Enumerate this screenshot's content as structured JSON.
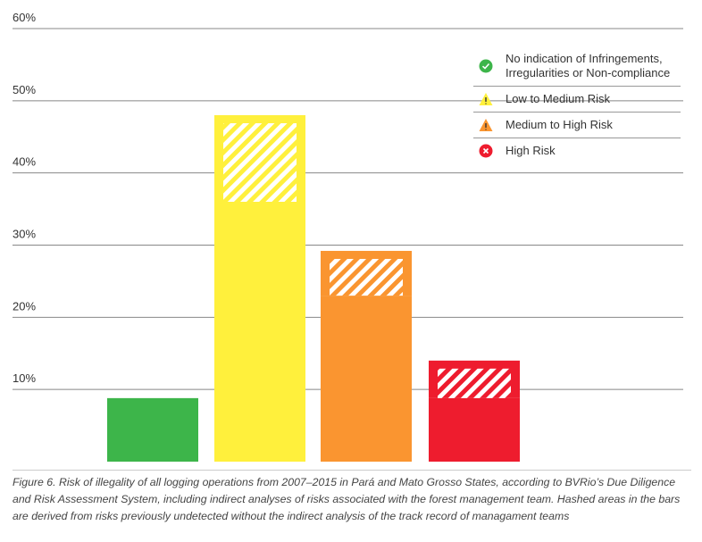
{
  "chart_data": {
    "type": "bar",
    "categories": [
      "No indication of Infringements, Irregularities or Non-compliance",
      "Low to Medium Risk",
      "Medium to High Risk",
      "High Risk"
    ],
    "colors": [
      "#3db54a",
      "#fff03c",
      "#fa9530",
      "#ee1c2e"
    ],
    "series": [
      {
        "values": [
          8.8,
          36,
          23,
          8.8
        ]
      },
      {
        "values": [
          null,
          12,
          6.2,
          5.2
        ],
        "hatched": true
      }
    ],
    "ylim": [
      0,
      60
    ],
    "yticks": [
      {
        "value": 10,
        "label": "10%"
      },
      {
        "value": 20,
        "label": "20%"
      },
      {
        "value": 30,
        "label": "30%"
      },
      {
        "value": 40,
        "label": "40%"
      },
      {
        "value": 50,
        "label": "50%"
      },
      {
        "value": 60,
        "label": "60%"
      }
    ],
    "grid": true,
    "caption": "Figure 6. Risk of illegality of all logging operations from 2007–2015 in Pará and Mato Grosso States, according to BVRio’s Due Diligence and Risk Assessment System, including indirect analyses of risks associated with the forest management team. Hashed areas in the bars are derived from risks previously undetected without the indirect analysis of the track record of managament teams"
  }
}
